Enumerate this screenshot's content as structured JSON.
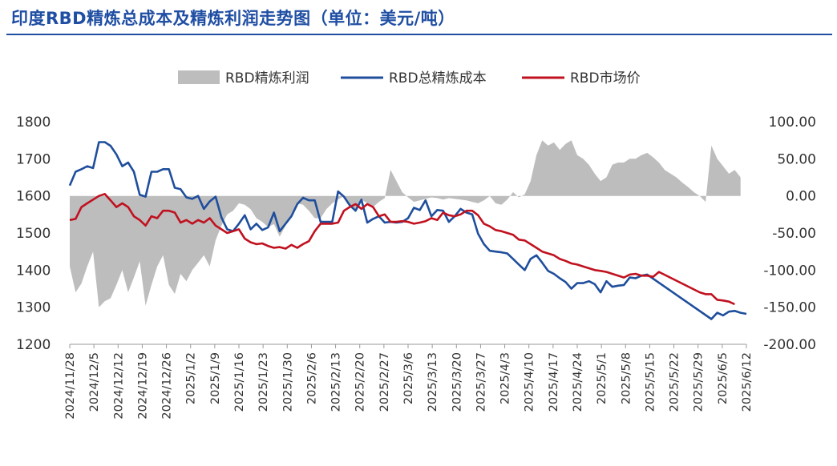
{
  "title": "印度RBD精炼总成本及精炼利润走势图（单位：美元/吨）",
  "chart_data": {
    "type": "line",
    "colors": {
      "profit": "#bdbdbd",
      "cost": "#1f4e9c",
      "price": "#c0111f",
      "title": "#1f4ea3"
    },
    "legend": {
      "placement": "top-center"
    },
    "grid": false,
    "left_axis": {
      "ylim": [
        1200,
        1800
      ],
      "ticks": [
        "1200",
        "1300",
        "1400",
        "1500",
        "1600",
        "1700",
        "1800"
      ]
    },
    "right_axis": {
      "ylim": [
        -200,
        100
      ],
      "ticks": [
        "-200.00",
        "-150.00",
        "-100.00",
        "-50.00",
        "0.00",
        "50.00",
        "100.00"
      ]
    },
    "x_tick_labels": [
      "2024/11/28",
      "2024/12/5",
      "2024/12/12",
      "2024/12/19",
      "2024/12/26",
      "2025/1/2",
      "2025/1/9",
      "2025/1/16",
      "2025/1/23",
      "2025/1/30",
      "2025/2/6",
      "2025/2/13",
      "2025/2/20",
      "2025/2/27",
      "2025/3/6",
      "2025/3/13",
      "2025/3/20",
      "2025/3/27",
      "2025/4/3",
      "2025/4/10",
      "2025/4/17",
      "2025/4/24",
      "2025/5/1",
      "2025/5/8",
      "2025/5/15",
      "2025/5/22",
      "2025/5/29",
      "2025/6/5",
      "2025/6/12"
    ],
    "series": [
      {
        "name": "RBD精炼利润",
        "axis": "right",
        "kind": "area",
        "values": [
          -95,
          -130,
          -118,
          -95,
          -75,
          -150,
          -142,
          -138,
          -120,
          -100,
          -130,
          -110,
          -88,
          -148,
          -120,
          -95,
          -80,
          -120,
          -132,
          -105,
          -115,
          -100,
          -90,
          -80,
          -95,
          -60,
          -40,
          -25,
          -20,
          -10,
          -12,
          -18,
          -30,
          -35,
          -42,
          -38,
          -55,
          -40,
          -25,
          -10,
          -12,
          -20,
          -30,
          -30,
          -18,
          -10,
          -5,
          0,
          -12,
          -18,
          -5,
          -10,
          -15,
          -8,
          -3,
          35,
          20,
          5,
          -2,
          -8,
          -6,
          -4,
          -2,
          -3,
          -5,
          -3,
          -4,
          -5,
          -6,
          -8,
          -10,
          -6,
          0,
          -10,
          -12,
          -5,
          5,
          -2,
          2,
          20,
          55,
          75,
          68,
          72,
          62,
          70,
          75,
          55,
          50,
          42,
          30,
          20,
          25,
          42,
          45,
          45,
          50,
          50,
          55,
          58,
          52,
          45,
          35,
          30,
          25,
          18,
          12,
          5,
          0,
          -8,
          68,
          50,
          40,
          30,
          35,
          25
        ],
        "x_index": [
          0,
          1,
          2,
          3,
          4,
          5,
          6,
          7,
          8,
          9,
          10,
          11,
          12,
          13,
          14,
          15,
          16,
          17,
          18,
          19,
          20,
          21,
          22,
          23,
          24,
          25,
          26,
          27,
          28,
          29,
          30,
          31,
          32,
          33,
          34,
          35,
          36,
          37,
          38,
          39,
          40,
          41,
          42,
          43,
          44,
          45,
          46,
          47,
          48,
          49,
          50,
          51,
          52,
          53,
          54,
          55,
          56,
          57,
          58,
          59,
          60,
          61,
          62,
          63,
          64,
          65,
          66,
          67,
          68,
          69,
          70,
          71,
          72,
          73,
          74,
          75,
          76,
          77,
          78,
          79,
          80,
          81,
          82,
          83,
          84,
          85,
          86,
          87,
          88,
          89,
          90,
          91,
          92,
          93,
          94,
          95,
          96,
          97,
          98,
          99,
          100,
          101,
          102,
          103,
          104,
          105,
          106,
          107,
          108,
          109,
          110,
          111,
          112,
          113,
          114,
          115
        ]
      },
      {
        "name": "RBD总精炼成本",
        "axis": "left",
        "kind": "line",
        "values": [
          1628,
          1665,
          1672,
          1680,
          1675,
          1745,
          1745,
          1735,
          1712,
          1680,
          1690,
          1665,
          1603,
          1598,
          1665,
          1665,
          1672,
          1672,
          1622,
          1618,
          1596,
          1592,
          1600,
          1565,
          1585,
          1598,
          1542,
          1510,
          1505,
          1525,
          1548,
          1510,
          1525,
          1508,
          1515,
          1555,
          1505,
          1525,
          1545,
          1578,
          1595,
          1588,
          1588,
          1530,
          1530,
          1530,
          1612,
          1598,
          1575,
          1560,
          1590,
          1528,
          1538,
          1545,
          1528,
          1530,
          1528,
          1530,
          1540,
          1568,
          1562,
          1588,
          1545,
          1562,
          1560,
          1530,
          1545,
          1565,
          1555,
          1550,
          1498,
          1470,
          1452,
          1450,
          1448,
          1445,
          1430,
          1415,
          1400,
          1430,
          1440,
          1420,
          1398,
          1390,
          1378,
          1368,
          1350,
          1365,
          1365,
          1370,
          1362,
          1340,
          1370,
          1355,
          1358,
          1360,
          1380,
          1378,
          1385,
          1388,
          1268,
          1285,
          1278,
          1288,
          1290,
          1285,
          1282
        ],
        "x_index": [
          0,
          1,
          2,
          3,
          4,
          5,
          6,
          7,
          8,
          9,
          10,
          11,
          12,
          13,
          14,
          15,
          16,
          17,
          18,
          19,
          20,
          21,
          22,
          23,
          24,
          25,
          26,
          27,
          28,
          29,
          30,
          31,
          32,
          33,
          34,
          35,
          36,
          37,
          38,
          39,
          40,
          41,
          42,
          43,
          44,
          45,
          46,
          47,
          48,
          49,
          50,
          51,
          52,
          53,
          54,
          55,
          56,
          57,
          58,
          59,
          60,
          61,
          62,
          63,
          64,
          65,
          66,
          67,
          68,
          69,
          70,
          71,
          72,
          73,
          74,
          75,
          76,
          77,
          78,
          79,
          80,
          81,
          82,
          83,
          84,
          85,
          86,
          87,
          88,
          89,
          90,
          91,
          92,
          93,
          94,
          95,
          96,
          97,
          98,
          99,
          110,
          111,
          112,
          113,
          114,
          115,
          116
        ]
      },
      {
        "name": "RBD市场价",
        "axis": "left",
        "kind": "line",
        "values": [
          1535,
          1538,
          1570,
          1580,
          1590,
          1600,
          1605,
          1588,
          1570,
          1580,
          1570,
          1545,
          1535,
          1520,
          1545,
          1540,
          1560,
          1560,
          1555,
          1528,
          1535,
          1525,
          1535,
          1528,
          1540,
          1520,
          1510,
          1500,
          1505,
          1510,
          1485,
          1475,
          1470,
          1472,
          1465,
          1460,
          1462,
          1458,
          1468,
          1460,
          1470,
          1478,
          1505,
          1525,
          1525,
          1525,
          1528,
          1560,
          1570,
          1578,
          1565,
          1578,
          1570,
          1545,
          1550,
          1530,
          1530,
          1532,
          1530,
          1525,
          1528,
          1532,
          1540,
          1535,
          1555,
          1548,
          1545,
          1550,
          1560,
          1560,
          1548,
          1525,
          1518,
          1508,
          1505,
          1500,
          1495,
          1482,
          1480,
          1470,
          1460,
          1450,
          1445,
          1440,
          1430,
          1425,
          1418,
          1415,
          1410,
          1405,
          1400,
          1398,
          1395,
          1390,
          1385,
          1380,
          1388,
          1390,
          1385,
          1385,
          1382,
          1395,
          1340,
          1335,
          1335,
          1320,
          1318,
          1315,
          1308
        ],
        "x_index": [
          0,
          1,
          2,
          3,
          4,
          5,
          6,
          7,
          8,
          9,
          10,
          11,
          12,
          13,
          14,
          15,
          16,
          17,
          18,
          19,
          20,
          21,
          22,
          23,
          24,
          25,
          26,
          27,
          28,
          29,
          30,
          31,
          32,
          33,
          34,
          35,
          36,
          37,
          38,
          39,
          40,
          41,
          42,
          43,
          44,
          45,
          46,
          47,
          48,
          49,
          50,
          51,
          52,
          53,
          54,
          55,
          56,
          57,
          58,
          59,
          60,
          61,
          62,
          63,
          64,
          65,
          66,
          67,
          68,
          69,
          70,
          71,
          72,
          73,
          74,
          75,
          76,
          77,
          78,
          79,
          80,
          81,
          82,
          83,
          84,
          85,
          86,
          87,
          88,
          89,
          90,
          91,
          92,
          93,
          94,
          95,
          96,
          97,
          98,
          99,
          100,
          101,
          108,
          109,
          110,
          111,
          112,
          113,
          114
        ]
      }
    ]
  }
}
